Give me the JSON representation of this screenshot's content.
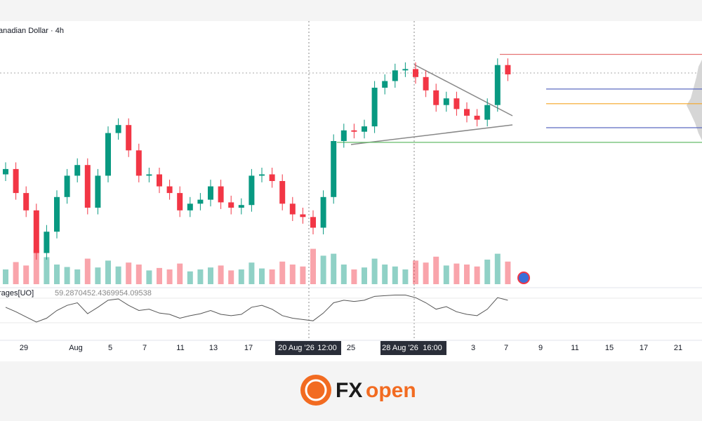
{
  "chart_data": {
    "type": "candlestick",
    "title": "anadian Dollar · 4h",
    "ylim": [
      0.89,
      0.91
    ],
    "open": [
      0.8985,
      0.8989,
      0.8971,
      0.8958,
      0.8926,
      0.8942,
      0.8968,
      0.8984,
      0.8992,
      0.896,
      0.8984,
      0.9016,
      0.9022,
      0.9003,
      0.8984,
      0.8985,
      0.8976,
      0.8971,
      0.8958,
      0.8963,
      0.8966,
      0.8976,
      0.8964,
      0.896,
      0.8962,
      0.8984,
      0.8985,
      0.898,
      0.8963,
      0.8955,
      0.8953,
      0.8945,
      0.8968,
      0.901,
      0.9018,
      0.9017,
      0.9021,
      0.905,
      0.9055,
      0.9063,
      0.9064,
      0.9058,
      0.9048,
      0.9037,
      0.9042,
      0.9034,
      0.9029,
      0.9026,
      0.9037,
      0.9067
    ],
    "high": [
      0.8994,
      0.8994,
      0.8976,
      0.8963,
      0.8947,
      0.8973,
      0.8989,
      0.8997,
      0.8997,
      0.8989,
      0.9021,
      0.9027,
      0.9027,
      0.9008,
      0.899,
      0.899,
      0.8981,
      0.8976,
      0.8968,
      0.8971,
      0.8981,
      0.8981,
      0.8969,
      0.8967,
      0.8989,
      0.899,
      0.899,
      0.8985,
      0.8968,
      0.896,
      0.8958,
      0.8973,
      0.9015,
      0.9023,
      0.9023,
      0.9026,
      0.9055,
      0.906,
      0.9068,
      0.9069,
      0.9069,
      0.9063,
      0.9053,
      0.9047,
      0.9047,
      0.9039,
      0.9034,
      0.9042,
      0.9072,
      0.9072
    ],
    "low": [
      0.898,
      0.8966,
      0.8953,
      0.8921,
      0.8921,
      0.8937,
      0.8963,
      0.8979,
      0.8955,
      0.8955,
      0.8979,
      0.9011,
      0.8998,
      0.8979,
      0.8979,
      0.8971,
      0.8966,
      0.8953,
      0.8953,
      0.8958,
      0.8961,
      0.8959,
      0.8955,
      0.8955,
      0.8957,
      0.8979,
      0.8975,
      0.8958,
      0.895,
      0.8948,
      0.894,
      0.894,
      0.8963,
      0.9005,
      0.9012,
      0.9012,
      0.9016,
      0.9045,
      0.905,
      0.9058,
      0.9053,
      0.9043,
      0.9032,
      0.9032,
      0.9029,
      0.9024,
      0.9021,
      0.9021,
      0.9032,
      0.9055
    ],
    "close": [
      0.8989,
      0.8971,
      0.8958,
      0.8926,
      0.8942,
      0.8968,
      0.8984,
      0.8992,
      0.896,
      0.8984,
      0.9016,
      0.9022,
      0.9003,
      0.8984,
      0.8985,
      0.8976,
      0.8971,
      0.8958,
      0.8963,
      0.8966,
      0.8976,
      0.8964,
      0.896,
      0.8962,
      0.8984,
      0.8985,
      0.898,
      0.8963,
      0.8955,
      0.8953,
      0.8945,
      0.8968,
      0.901,
      0.9018,
      0.9017,
      0.9021,
      0.905,
      0.9055,
      0.9063,
      0.9064,
      0.9058,
      0.9048,
      0.9037,
      0.9042,
      0.9034,
      0.9029,
      0.9026,
      0.9037,
      0.9067,
      0.906
    ],
    "up_color": "#089981",
    "down_color": "#f23645",
    "volume": [
      30,
      45,
      38,
      70,
      55,
      40,
      35,
      30,
      52,
      34,
      48,
      36,
      44,
      40,
      28,
      33,
      30,
      42,
      26,
      30,
      34,
      38,
      28,
      30,
      44,
      32,
      30,
      46,
      40,
      36,
      72,
      58,
      62,
      40,
      30,
      34,
      52,
      40,
      36,
      30,
      48,
      44,
      56,
      38,
      42,
      40,
      36,
      50,
      62,
      46
    ],
    "volume_lim": [
      0,
      100
    ],
    "levels": [
      {
        "value": 0.9075,
        "color": "#e57373"
      },
      {
        "value": 0.9049,
        "color": "#5c6bc0"
      },
      {
        "value": 0.9038,
        "color": "#f5a623"
      },
      {
        "value": 0.902,
        "color": "#5c6bc0"
      },
      {
        "value": 0.9009,
        "color": "#66bb6a"
      }
    ],
    "oscillator": {
      "label": "rages[UO]",
      "readouts": [
        59.28704,
        52.43699,
        54.09538
      ],
      "ylim": [
        20,
        80
      ],
      "color": "#555555",
      "values": [
        55,
        48,
        40,
        32,
        38,
        50,
        58,
        62,
        45,
        55,
        66,
        68,
        58,
        50,
        52,
        46,
        44,
        38,
        42,
        45,
        50,
        44,
        42,
        44,
        55,
        58,
        52,
        42,
        38,
        36,
        34,
        46,
        62,
        66,
        64,
        66,
        72,
        73,
        74,
        74,
        70,
        62,
        52,
        56,
        48,
        44,
        42,
        52,
        70,
        66
      ]
    },
    "x_labels": [
      "29",
      "Aug",
      "5",
      "7",
      "11",
      "13",
      "17",
      "20 Aug '26",
      "12:00",
      "25",
      "28 Aug '26",
      "16:00",
      "3",
      "7",
      "9",
      "11",
      "15",
      "17",
      "21"
    ],
    "brand": {
      "left": "FX",
      "right": "open"
    }
  }
}
